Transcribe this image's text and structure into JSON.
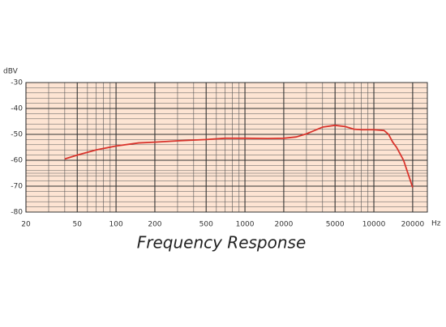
{
  "chart_data": {
    "type": "line",
    "title": "Frequency Response",
    "ylabel": "dBV",
    "xlabel": "Hz",
    "xscale": "log",
    "x": [
      40,
      50,
      70,
      100,
      150,
      200,
      300,
      500,
      700,
      1000,
      1500,
      2000,
      2500,
      3000,
      4000,
      5000,
      6000,
      7000,
      8000,
      10000,
      12000,
      13000,
      14000,
      15000,
      17000,
      20000
    ],
    "series": [
      {
        "name": "Frequency Response",
        "color": "#d9332b",
        "values": [
          -59.5,
          -58,
          -56,
          -54.5,
          -53.3,
          -53,
          -52.5,
          -52,
          -51.5,
          -51.5,
          -51.6,
          -51.5,
          -51,
          -49.8,
          -47.2,
          -46.5,
          -47,
          -48,
          -48.2,
          -48.2,
          -48.5,
          -50,
          -53,
          -55,
          -60,
          -70.5
        ]
      }
    ],
    "xlim": [
      20,
      26000
    ],
    "ylim": [
      -80,
      -30
    ],
    "xticks": [
      20,
      50,
      100,
      200,
      500,
      1000,
      2000,
      5000,
      10000,
      20000
    ],
    "yticks": [
      -30,
      -40,
      -50,
      -60,
      -70,
      -80
    ],
    "xminor": [
      30,
      40,
      60,
      70,
      80,
      90,
      300,
      400,
      600,
      700,
      800,
      900,
      3000,
      4000,
      6000,
      7000,
      8000,
      9000
    ],
    "yminor": [
      -32,
      -34,
      -36,
      -38,
      -42,
      -44,
      -46,
      -48,
      -52,
      -54,
      -56,
      -58,
      -62,
      -64,
      -65,
      -66,
      -68,
      -72,
      -74,
      -76,
      -78
    ],
    "grid": true,
    "background": "#fde4d3"
  }
}
